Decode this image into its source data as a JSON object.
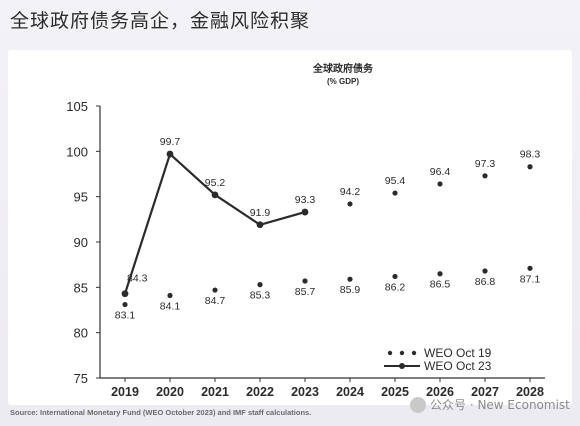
{
  "page": {
    "title": "全球政府债务高企，金融风险积聚",
    "source": "Source: International Monetary Fund (WEO October 2023) and IMF staff calculations.",
    "watermark": "公众号 · New Economist"
  },
  "chart_data": {
    "type": "line",
    "title": "全球政府债务",
    "subtitle": "(% GDP)",
    "xlabel": "",
    "ylabel": "",
    "categories": [
      "2019",
      "2020",
      "2021",
      "2022",
      "2023",
      "2024",
      "2025",
      "2026",
      "2027",
      "2028"
    ],
    "ylim": [
      75,
      105
    ],
    "yticks": [
      75,
      80,
      85,
      90,
      95,
      100,
      105
    ],
    "grid": false,
    "legend_position": "bottom-right",
    "series": [
      {
        "name": "WEO Oct 19",
        "style": "dots",
        "color": "#2b2b2b",
        "values": [
          83.1,
          84.1,
          84.7,
          85.3,
          85.7,
          85.9,
          86.2,
          86.5,
          86.8,
          87.1
        ],
        "labels": [
          "83.1",
          "84.1",
          "84.7",
          "85.3",
          "85.7",
          "85.9",
          "86.2",
          "86.5",
          "86.8",
          "87.1"
        ]
      },
      {
        "name": "WEO Oct 23",
        "style": "line-then-dots",
        "color": "#2b2b2b",
        "solid_through_index": 4,
        "values": [
          84.3,
          99.7,
          95.2,
          91.9,
          93.3,
          94.2,
          95.4,
          96.4,
          97.3,
          98.3
        ],
        "labels": [
          "84.3",
          "99.7",
          "95.2",
          "91.9",
          "93.3",
          "94.2",
          "95.4",
          "96.4",
          "97.3",
          "98.3"
        ]
      }
    ]
  }
}
